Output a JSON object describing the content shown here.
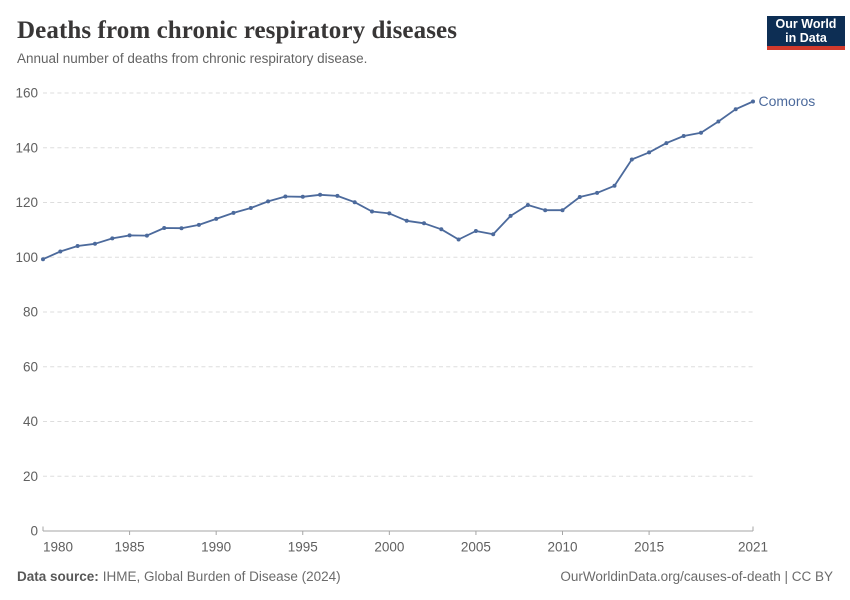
{
  "header": {
    "title": "Deaths from chronic respiratory diseases",
    "subtitle": "Annual number of deaths from chronic respiratory disease.",
    "logo": {
      "line1": "Our World",
      "line2": "in Data"
    }
  },
  "chart_data": {
    "type": "line",
    "title": "Deaths from chronic respiratory diseases",
    "xlabel": "",
    "ylabel": "",
    "x": [
      1980,
      1981,
      1982,
      1983,
      1984,
      1985,
      1986,
      1987,
      1988,
      1989,
      1990,
      1991,
      1992,
      1993,
      1994,
      1995,
      1996,
      1997,
      1998,
      1999,
      2000,
      2001,
      2002,
      2003,
      2004,
      2005,
      2006,
      2007,
      2008,
      2009,
      2010,
      2011,
      2012,
      2013,
      2014,
      2015,
      2016,
      2017,
      2018,
      2019,
      2020,
      2021
    ],
    "series": [
      {
        "name": "Comoros",
        "color": "#4c6a9c",
        "values": [
          99.3,
          102.1,
          104.1,
          104.9,
          106.9,
          108.0,
          107.9,
          110.7,
          110.6,
          111.8,
          114.0,
          116.2,
          118.0,
          120.4,
          122.2,
          122.1,
          122.8,
          122.4,
          120.1,
          116.7,
          116.0,
          113.3,
          112.4,
          110.2,
          106.5,
          109.6,
          108.4,
          115.1,
          119.1,
          117.2,
          117.2,
          122.0,
          123.5,
          126.1,
          135.7,
          138.3,
          141.7,
          144.3,
          145.5,
          149.6,
          154.1,
          156.9
        ]
      }
    ],
    "xlim": [
      1980,
      2021
    ],
    "ylim": [
      0,
      160
    ],
    "xticks": [
      1980,
      1985,
      1990,
      1995,
      2000,
      2005,
      2010,
      2015,
      2021
    ],
    "yticks": [
      0,
      20,
      40,
      60,
      80,
      100,
      120,
      140,
      160
    ],
    "grid": "horizontal-dashed",
    "legend_position": "end-of-line-label",
    "markers": true
  },
  "footer": {
    "source_label": "Data source:",
    "source_text": "IHME, Global Burden of Disease (2024)",
    "attribution": "OurWorldinData.org/causes-of-death | CC BY"
  },
  "colors": {
    "accent": "#4c6a9c",
    "logo_bg": "#0d2e54",
    "logo_red": "#d23a2c",
    "grid": "#dddddd",
    "axis": "#a5a5a5",
    "tick_text": "#606060",
    "title_text": "#383636",
    "subtitle_text": "#646464",
    "footer_text": "#6b6b6b"
  }
}
